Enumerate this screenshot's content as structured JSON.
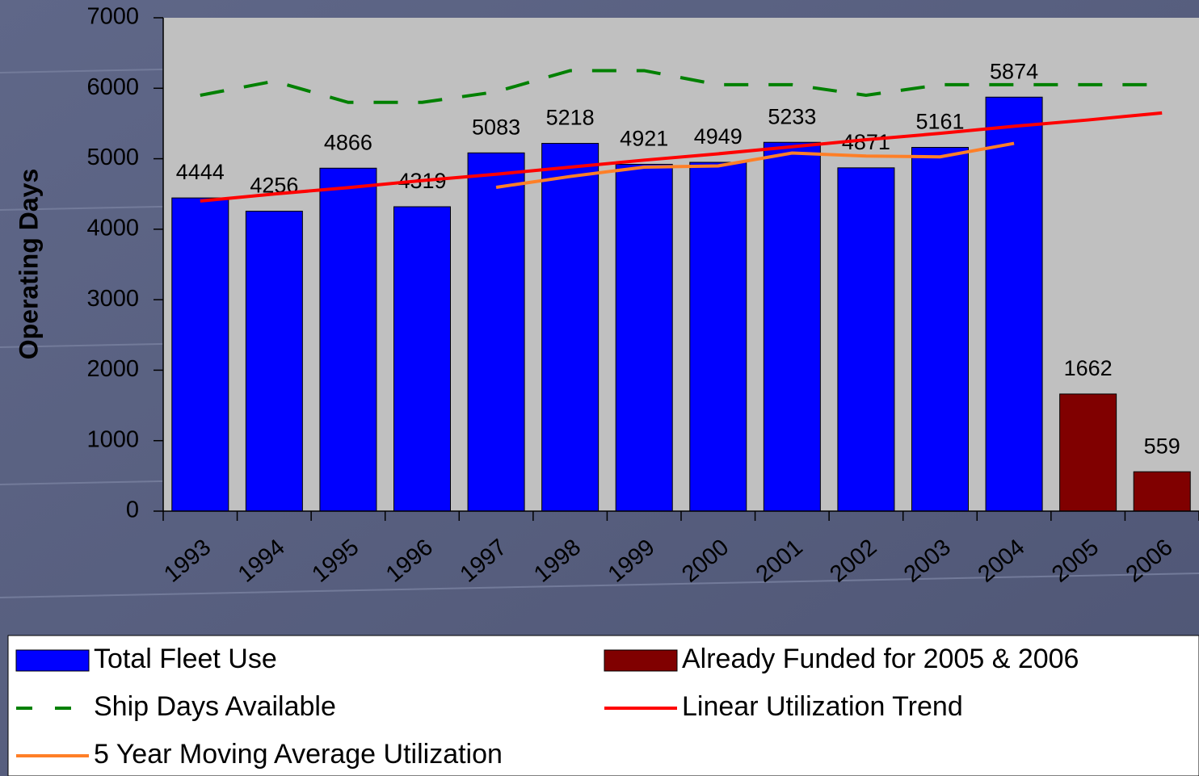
{
  "chart_data": {
    "type": "bar",
    "y_label": "Operating Days",
    "categories": [
      "1993",
      "1994",
      "1995",
      "1996",
      "1997",
      "1998",
      "1999",
      "2000",
      "2001",
      "2002",
      "2003",
      "2004",
      "2005",
      "2006"
    ],
    "series": [
      {
        "name": "Total Fleet Use",
        "type": "bar",
        "color": "#0000ff",
        "values": [
          4444,
          4256,
          4866,
          4319,
          5083,
          5218,
          4921,
          4949,
          5233,
          4871,
          5161,
          5874,
          null,
          null
        ]
      },
      {
        "name": "Already Funded for 2005 & 2006",
        "type": "bar",
        "color": "#800000",
        "values": [
          null,
          null,
          null,
          null,
          null,
          null,
          null,
          null,
          null,
          null,
          null,
          null,
          1662,
          559
        ]
      },
      {
        "name": "Ship Days Available",
        "type": "line",
        "style": "dashed",
        "color": "#008000",
        "values": [
          5900,
          6100,
          5800,
          5800,
          5950,
          6250,
          6250,
          6050,
          6050,
          5900,
          6050,
          6050,
          6050,
          6050
        ]
      },
      {
        "name": "Linear Utilization Trend",
        "type": "line",
        "style": "solid",
        "color": "#ff0000",
        "values": [
          4400,
          4500,
          4590,
          4690,
          4780,
          4880,
          4980,
          5070,
          5170,
          5270,
          5360,
          5460,
          5550,
          5650
        ]
      },
      {
        "name": "5 Year Moving Average Utilization",
        "type": "line",
        "style": "solid",
        "color": "#ff7f27",
        "values": [
          null,
          null,
          null,
          null,
          4594,
          4748,
          4881,
          4898,
          5081,
          5038,
          5027,
          5218,
          null,
          null
        ]
      }
    ],
    "ylim": [
      0,
      7000
    ],
    "yticks": [
      0,
      1000,
      2000,
      3000,
      4000,
      5000,
      6000,
      7000
    ],
    "value_labels_on": "bars",
    "legend": "bottom"
  }
}
